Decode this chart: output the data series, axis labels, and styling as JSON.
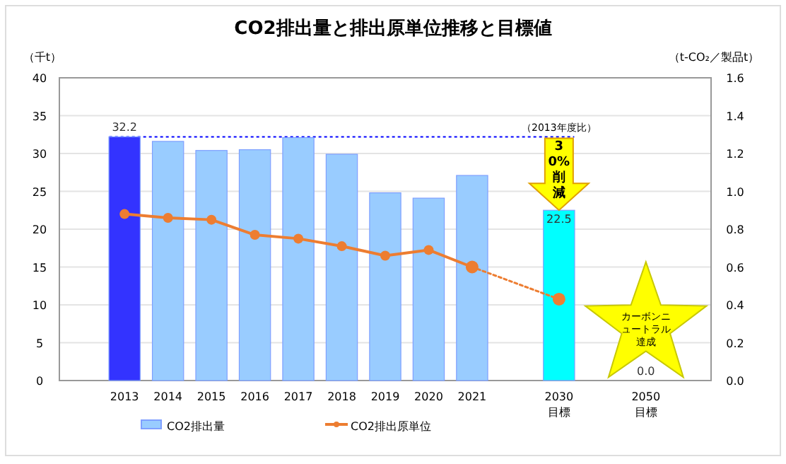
{
  "chart_data": {
    "type": "bar",
    "title": "CO2排出量と排出原単位推移と目標値",
    "ylabel": "（千t）",
    "y2label": "（t-CO₂／製品t）",
    "categories": [
      null,
      "2013",
      "2014",
      "2015",
      "2016",
      "2017",
      "2018",
      "2019",
      "2020",
      "2021",
      null,
      "2030\n目標",
      null,
      "2050\n目標",
      null
    ],
    "series": [
      {
        "name": "CO2排出量",
        "color": "#99ccff",
        "colors": [
          null,
          "#3333ff",
          "#99ccff",
          "#99ccff",
          "#99ccff",
          "#99ccff",
          "#99ccff",
          "#99ccff",
          "#99ccff",
          "#99ccff",
          null,
          "#00ffff",
          null,
          "#99ccff",
          null
        ],
        "values": [
          null,
          32.2,
          31.6,
          30.4,
          30.5,
          32.1,
          29.9,
          24.8,
          24.1,
          27.1,
          null,
          22.5,
          null,
          0.0,
          null
        ],
        "value_labels": [
          null,
          "32.2",
          null,
          null,
          null,
          null,
          null,
          null,
          null,
          null,
          null,
          "22.5",
          null,
          "0.0",
          null
        ]
      },
      {
        "name": "CO2排出原単位",
        "type": "line",
        "axis": "y2",
        "color": "#ed7d31",
        "marker": "circle",
        "line_style": "solid",
        "values": [
          null,
          0.88,
          0.86,
          0.85,
          0.77,
          0.75,
          0.71,
          0.66,
          0.69,
          0.6,
          null,
          null,
          null,
          null,
          null
        ]
      },
      {
        "type": "line",
        "axis": "y2",
        "color": "#ed7d31",
        "marker": "circle",
        "line_style": "dotted",
        "values": [
          null,
          null,
          null,
          null,
          null,
          null,
          null,
          null,
          null,
          0.6,
          null,
          0.43,
          null,
          null,
          null
        ]
      }
    ],
    "ylim": [
      0,
      40
    ],
    "yticks": [
      0,
      5,
      10,
      15,
      20,
      25,
      30,
      35,
      40
    ],
    "y2lim": [
      0,
      1.6
    ],
    "y2ticks": [
      {
        "value": 0,
        "label": "0.0"
      },
      {
        "value": 0.2,
        "label": "0.2"
      },
      {
        "value": 0.4,
        "label": "0.4"
      },
      {
        "value": 0.6,
        "label": "0.6"
      },
      {
        "value": 0.8,
        "label": "0.8"
      },
      {
        "value": 1.0,
        "label": "1.0"
      },
      {
        "value": 1.2,
        "label": "1.2"
      },
      {
        "value": 1.4,
        "label": "1.4"
      },
      {
        "value": 1.6,
        "label": "1.6"
      }
    ],
    "ref_lines": [
      {
        "axis": "y",
        "value": 32.2,
        "label": "（2013年度比）",
        "color": "#0000ff",
        "line_style": "dotted"
      }
    ],
    "annotations": [
      {
        "text": "30%削減",
        "x": "2030\n目標",
        "y": 22.5
      },
      "カーボンニュートラル達成"
    ],
    "grid": "y",
    "legend": "bottom"
  }
}
